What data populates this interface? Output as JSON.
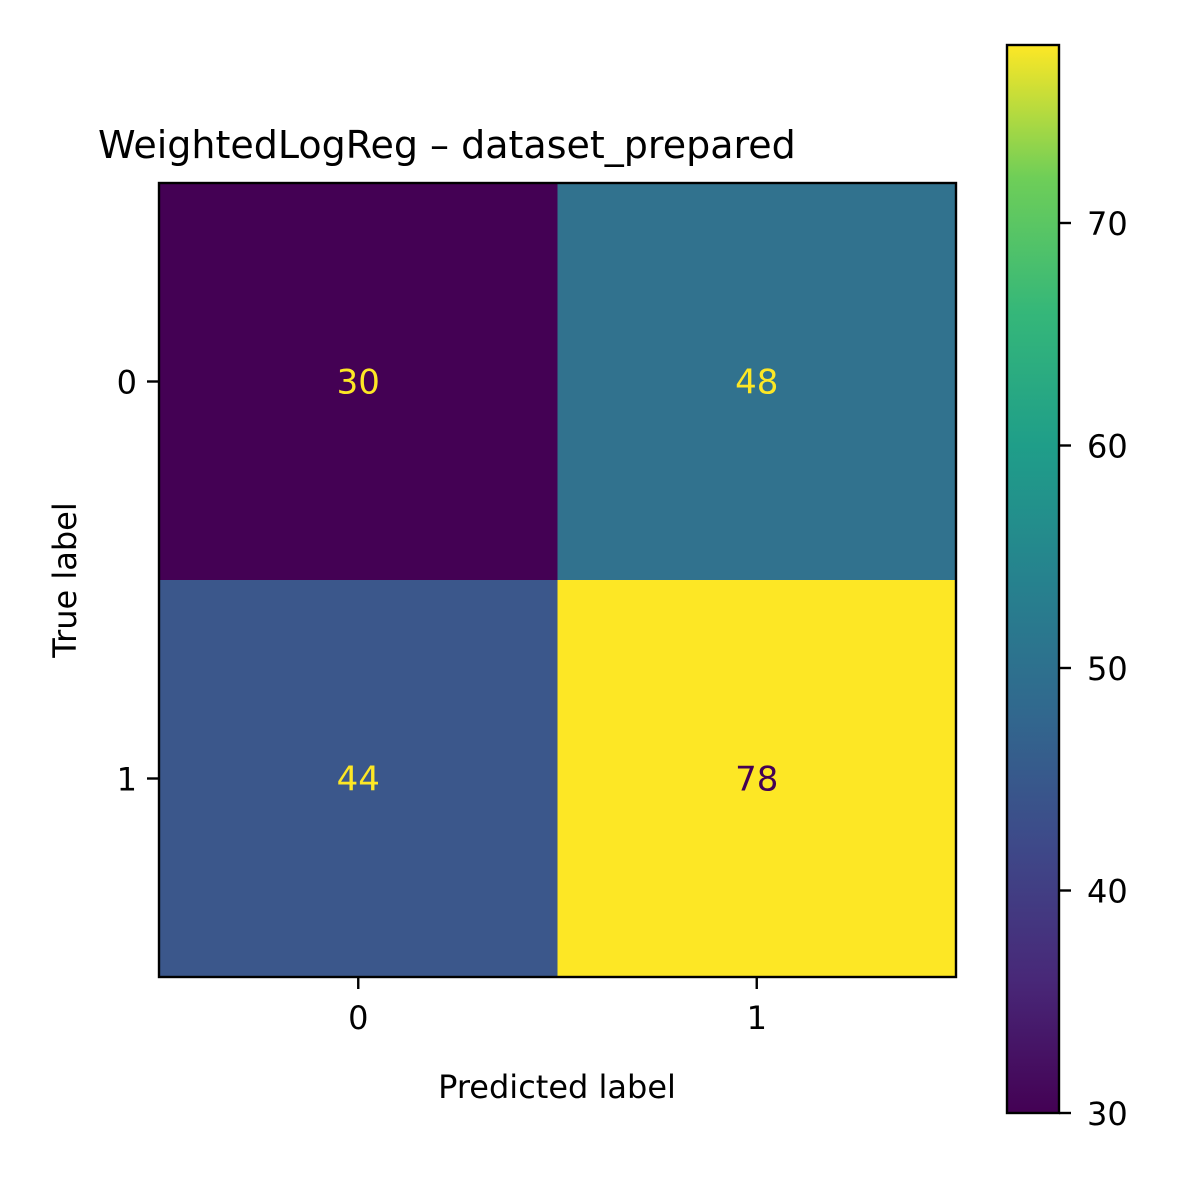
{
  "chart_data": {
    "type": "heatmap",
    "title": "WeightedLogReg – dataset_prepared",
    "xlabel": "Predicted label",
    "ylabel": "True label",
    "x_categories": [
      "0",
      "1"
    ],
    "y_categories": [
      "0",
      "1"
    ],
    "values": [
      [
        30,
        48
      ],
      [
        44,
        78
      ]
    ],
    "colormap": "viridis",
    "colorbar": {
      "range": [
        30,
        78
      ],
      "ticks": [
        "30",
        "40",
        "50",
        "60",
        "70"
      ],
      "tick_values": [
        30,
        40,
        50,
        60,
        70
      ]
    },
    "cell_colors": [
      [
        "#440154",
        "#31728e"
      ],
      [
        "#3b578b",
        "#fde725"
      ]
    ],
    "label_colors": [
      [
        "#fde725",
        "#fde725"
      ],
      [
        "#fde725",
        "#440154"
      ]
    ]
  }
}
